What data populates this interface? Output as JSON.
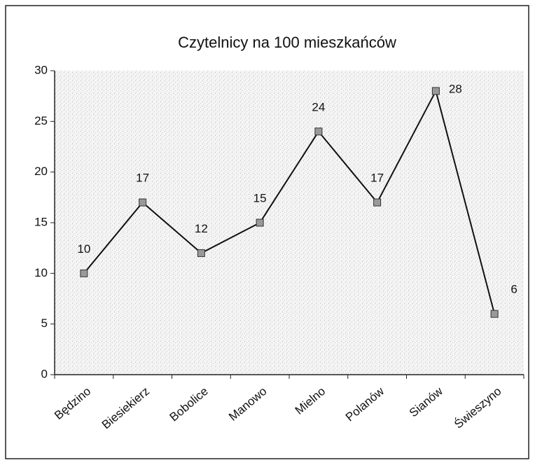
{
  "chart_data": {
    "type": "line",
    "title": "Czytelnicy na 100 mieszkańców",
    "categories": [
      "Będzino",
      "Biesiekierz",
      "Bobolice",
      "Manowo",
      "Mielno",
      "Polanów",
      "Sianów",
      "Świeszyno"
    ],
    "values": [
      10,
      17,
      12,
      15,
      24,
      17,
      28,
      6
    ],
    "color": "#111111",
    "ylim": [
      0,
      30
    ],
    "yticks": [
      0,
      5,
      10,
      15,
      20,
      25,
      30
    ]
  }
}
